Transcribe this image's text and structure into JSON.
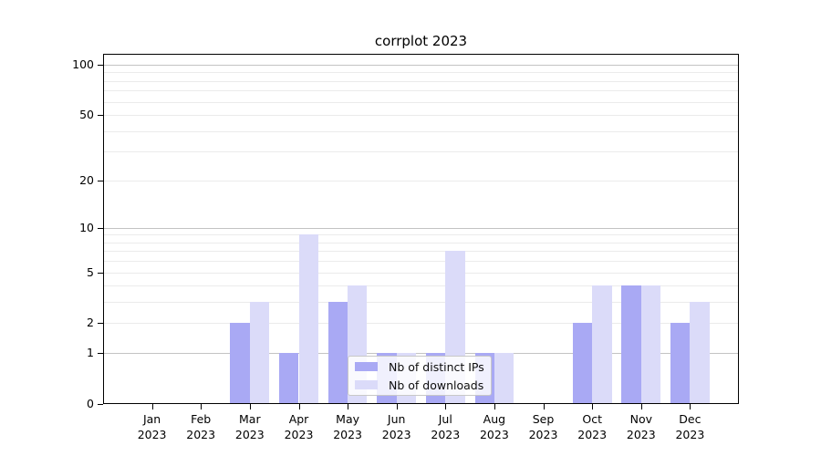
{
  "chart_data": {
    "type": "bar",
    "title": "corrplot 2023",
    "x_categories": [
      "Jan 2023",
      "Feb 2023",
      "Mar 2023",
      "Apr 2023",
      "May 2023",
      "Jun 2023",
      "Jul 2023",
      "Aug 2023",
      "Sep 2023",
      "Oct 2023",
      "Nov 2023",
      "Dec 2023"
    ],
    "x_tick_month_labels": [
      "Jan",
      "Feb",
      "Mar",
      "Apr",
      "May",
      "Jun",
      "Jul",
      "Aug",
      "Sep",
      "Oct",
      "Nov",
      "Dec"
    ],
    "x_tick_year_label": "2023",
    "series": [
      {
        "name": "Nb of distinct IPs",
        "color": "#a9a9f4",
        "values": [
          0,
          0,
          2,
          1,
          3,
          1,
          1,
          1,
          0,
          2,
          4,
          2
        ]
      },
      {
        "name": "Nb of downloads",
        "color": "#dbdbf9",
        "values": [
          0,
          0,
          3,
          9,
          4,
          1,
          7,
          1,
          0,
          4,
          4,
          3
        ]
      }
    ],
    "y_axis": {
      "scale": "log10(1+x)",
      "tick_values": [
        0,
        1,
        2,
        5,
        10,
        20,
        50,
        100
      ],
      "tick_labels": [
        "0",
        "1",
        "2",
        "5",
        "10",
        "20",
        "50",
        "100"
      ],
      "major_grid_values": [
        1,
        10,
        100
      ],
      "minor_grid_values": [
        2,
        3,
        4,
        5,
        6,
        7,
        8,
        9,
        20,
        30,
        40,
        50,
        60,
        70,
        80,
        90
      ],
      "top_value": 116,
      "grid": true
    },
    "legend": {
      "position": "lower center",
      "items": [
        {
          "label": "Nb of distinct IPs",
          "color": "#a9a9f4"
        },
        {
          "label": "Nb of downloads",
          "color": "#dbdbf9"
        }
      ]
    }
  }
}
